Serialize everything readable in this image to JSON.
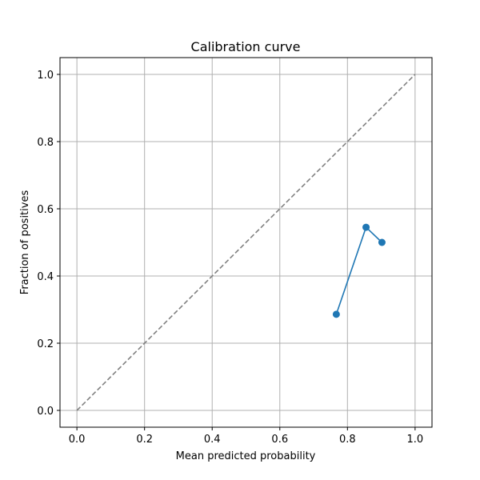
{
  "chart_data": {
    "type": "line",
    "title": "Calibration curve",
    "xlabel": "Mean predicted probability",
    "ylabel": "Fraction of positives",
    "xlim": [
      -0.05,
      1.05
    ],
    "ylim": [
      -0.05,
      1.05
    ],
    "xticks": [
      "0.0",
      "0.2",
      "0.4",
      "0.6",
      "0.8",
      "1.0"
    ],
    "yticks": [
      "0.0",
      "0.2",
      "0.4",
      "0.6",
      "0.8",
      "1.0"
    ],
    "grid": true,
    "series": [
      {
        "style": "solid-with-markers",
        "color": "#1f77b4",
        "x": [
          0.767,
          0.855,
          0.902
        ],
        "y": [
          0.286,
          0.545,
          0.5
        ]
      },
      {
        "style": "dashed-reference",
        "color": "#808080",
        "x": [
          0.0,
          1.0
        ],
        "y": [
          0.0,
          1.0
        ]
      }
    ]
  }
}
